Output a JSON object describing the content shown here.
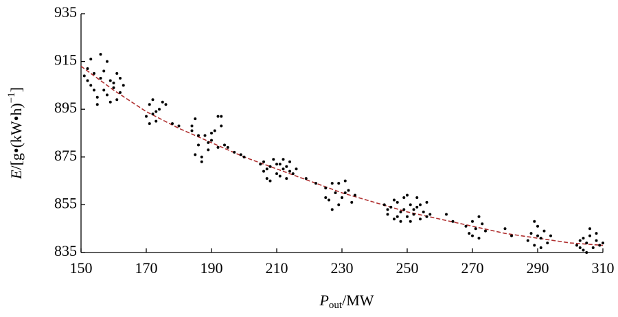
{
  "chart_data": {
    "type": "scatter",
    "xlabel": {
      "main": "P",
      "sub": "out",
      "end": "/MW"
    },
    "ylabel": {
      "main": "E",
      "mid": "/[g•(kW•h)",
      "sup": "−1",
      "end": "]"
    },
    "xlim": [
      150,
      310
    ],
    "xticks": [
      150,
      170,
      190,
      210,
      230,
      250,
      270,
      290,
      310
    ],
    "ylim": [
      835,
      935
    ],
    "yticks": [
      835,
      855,
      875,
      895,
      915,
      935
    ],
    "points": {
      "color": "#000000",
      "x": [
        152,
        153,
        154,
        155,
        156,
        157,
        158,
        159,
        160,
        161,
        162,
        153,
        155,
        157,
        159,
        161,
        162,
        151,
        154,
        156,
        158,
        160,
        163,
        152,
        171,
        172,
        173,
        174,
        175,
        171,
        173,
        176,
        170,
        172,
        178,
        180,
        184,
        185,
        186,
        187,
        188,
        189,
        190,
        191,
        192,
        193,
        194,
        185,
        187,
        189,
        190,
        192,
        184,
        186,
        193,
        195,
        197,
        199,
        200,
        205,
        206,
        207,
        208,
        209,
        210,
        211,
        212,
        213,
        214,
        215,
        216,
        206,
        208,
        210,
        212,
        214,
        207,
        211,
        213,
        219,
        222,
        225,
        226,
        227,
        228,
        229,
        230,
        231,
        232,
        233,
        234,
        227,
        229,
        231,
        225,
        243,
        244,
        245,
        246,
        247,
        248,
        249,
        250,
        251,
        252,
        253,
        254,
        255,
        256,
        257,
        246,
        248,
        250,
        252,
        254,
        244,
        247,
        249,
        251,
        253,
        256,
        262,
        264,
        268,
        269,
        270,
        271,
        272,
        273,
        274,
        270,
        272,
        280,
        282,
        287,
        288,
        289,
        290,
        291,
        292,
        293,
        294,
        289,
        291,
        290,
        302,
        303,
        304,
        305,
        306,
        307,
        308,
        309,
        305,
        306,
        303,
        308,
        310,
        304
      ],
      "y": [
        912,
        905,
        910,
        900,
        908,
        903,
        915,
        898,
        906,
        910,
        902,
        916,
        897,
        911,
        907,
        899,
        908,
        909,
        903,
        918,
        901,
        904,
        905,
        907,
        897,
        893,
        890,
        895,
        898,
        889,
        894,
        897,
        892,
        899,
        889,
        888,
        886,
        891,
        880,
        875,
        884,
        878,
        882,
        886,
        892,
        888,
        880,
        876,
        873,
        881,
        885,
        879,
        888,
        884,
        892,
        879,
        877,
        876,
        875,
        872,
        869,
        866,
        871,
        874,
        868,
        872,
        870,
        866,
        873,
        868,
        870,
        873,
        865,
        872,
        874,
        869,
        870,
        867,
        871,
        866,
        864,
        862,
        857,
        853,
        860,
        864,
        858,
        865,
        861,
        856,
        859,
        864,
        855,
        860,
        858,
        855,
        851,
        854,
        849,
        856,
        852,
        858,
        850,
        855,
        853,
        858,
        849,
        852,
        856,
        851,
        857,
        848,
        859,
        851,
        855,
        853,
        850,
        853,
        848,
        854,
        850,
        851,
        848,
        846,
        843,
        848,
        845,
        841,
        847,
        844,
        842,
        850,
        845,
        842,
        840,
        843,
        838,
        846,
        841,
        844,
        839,
        842,
        848,
        837,
        842,
        838,
        840,
        836,
        839,
        842,
        837,
        840,
        838,
        835,
        845,
        837,
        843,
        839,
        841
      ]
    },
    "fit": {
      "color": "#b03030",
      "dashed": true,
      "x": [
        150,
        160,
        170,
        180,
        190,
        200,
        210,
        220,
        230,
        240,
        250,
        260,
        270,
        280,
        290,
        300,
        310
      ],
      "y": [
        913,
        903,
        894,
        887,
        881,
        875,
        870,
        865,
        860,
        856,
        852,
        849,
        846,
        843,
        841,
        839,
        838
      ]
    }
  }
}
